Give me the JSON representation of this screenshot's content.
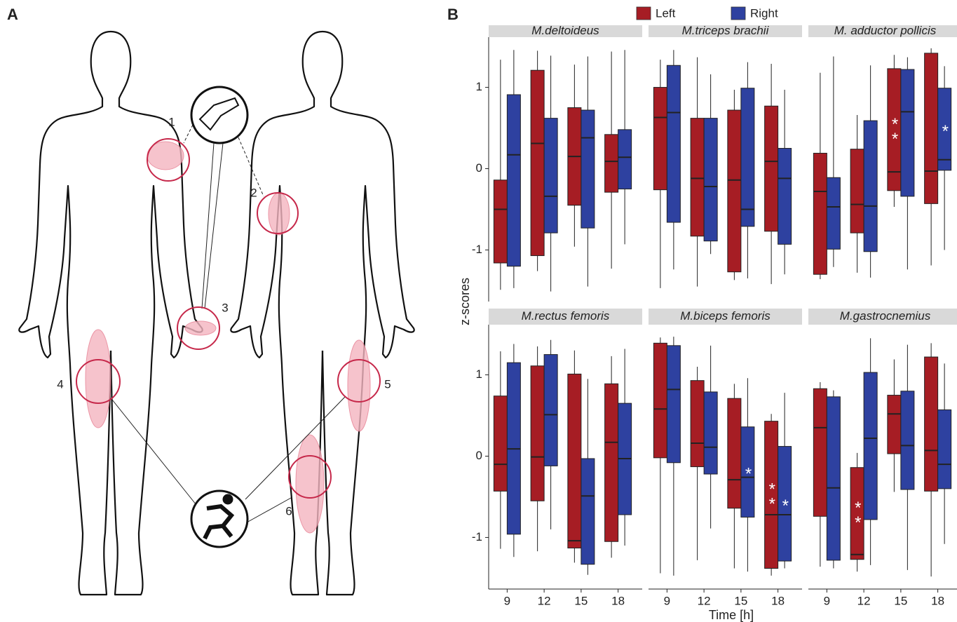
{
  "diagram": {
    "label": "A",
    "sites": [
      "1",
      "2",
      "3",
      "4",
      "5",
      "6"
    ]
  },
  "chart_data": {
    "type": "box",
    "label": "B",
    "x_label": "Time [h]",
    "y_label": "z-scores",
    "categories": [
      "9",
      "12",
      "15",
      "18"
    ],
    "series": [
      {
        "name": "Left",
        "color": "#a61d24"
      },
      {
        "name": "Right",
        "color": "#2e41a0"
      }
    ],
    "ylim": [
      -1.6,
      1.6
    ],
    "yticks": [
      -1,
      0,
      1
    ],
    "facets": [
      {
        "title": "M.deltoideus",
        "boxes": [
          [
            [
              -1.49,
              -1.16,
              -0.5,
              -0.14,
              1.34
            ],
            [
              -1.26,
              -1.07,
              0.31,
              1.21,
              1.45
            ],
            [
              -0.96,
              -0.45,
              0.15,
              0.75,
              1.28
            ],
            [
              -1.23,
              -0.29,
              0.09,
              0.42,
              1.44
            ]
          ],
          [
            [
              -1.47,
              -1.2,
              0.17,
              0.91,
              1.46
            ],
            [
              -1.51,
              -0.79,
              -0.34,
              0.62,
              1.39
            ],
            [
              -1.45,
              -0.73,
              0.38,
              0.72,
              1.38
            ],
            [
              -0.93,
              -0.25,
              0.14,
              0.48,
              1.46
            ]
          ]
        ],
        "labels": [
          [
            null,
            null,
            null,
            null
          ],
          [
            null,
            null,
            null,
            null
          ]
        ]
      },
      {
        "title": "M.triceps brachii",
        "boxes": [
          [
            [
              -1.47,
              -0.26,
              0.63,
              1.0,
              1.34
            ],
            [
              -1.45,
              -0.83,
              -0.12,
              0.62,
              1.37
            ],
            [
              -1.37,
              -1.27,
              -0.14,
              0.72,
              0.97
            ],
            [
              -1.42,
              -0.77,
              0.09,
              0.77,
              1.29
            ]
          ],
          [
            [
              -1.24,
              -0.66,
              0.69,
              1.27,
              1.46
            ],
            [
              -1.05,
              -0.89,
              -0.22,
              0.62,
              1.16
            ],
            [
              -1.35,
              -0.71,
              -0.5,
              0.99,
              1.31
            ],
            [
              -1.3,
              -0.93,
              -0.12,
              0.25,
              0.97
            ]
          ]
        ],
        "labels": [
          [
            null,
            null,
            null,
            null
          ],
          [
            null,
            null,
            null,
            null
          ]
        ]
      },
      {
        "title": "M. adductor pollicis",
        "boxes": [
          [
            [
              -1.36,
              -1.3,
              -0.28,
              0.19,
              1.18
            ],
            [
              -1.28,
              -0.79,
              -0.44,
              0.24,
              0.66
            ],
            [
              -0.47,
              -0.27,
              -0.04,
              1.23,
              1.4
            ],
            [
              -1.19,
              -0.43,
              -0.03,
              1.42,
              1.48
            ]
          ],
          [
            [
              -1.21,
              -0.99,
              -0.47,
              -0.11,
              1.38
            ],
            [
              -1.34,
              -1.02,
              -0.46,
              0.59,
              1.27
            ],
            [
              -1.24,
              -0.34,
              0.7,
              1.22,
              1.37
            ],
            [
              -1.0,
              -0.02,
              0.11,
              0.99,
              1.26
            ]
          ]
        ],
        "labels": [
          [
            null,
            null,
            "**",
            null
          ],
          [
            null,
            null,
            null,
            "*"
          ]
        ]
      },
      {
        "title": "M.rectus femoris",
        "boxes": [
          [
            [
              -1.14,
              -0.43,
              -0.1,
              0.74,
              1.29
            ],
            [
              -1.17,
              -0.55,
              -0.01,
              1.11,
              1.35
            ],
            [
              -1.31,
              -1.13,
              -1.04,
              1.01,
              1.3
            ],
            [
              -1.25,
              -1.05,
              0.17,
              0.89,
              1.23
            ]
          ],
          [
            [
              -1.24,
              -0.96,
              0.09,
              1.15,
              1.38
            ],
            [
              -0.9,
              -0.12,
              0.51,
              1.25,
              1.43
            ],
            [
              -1.46,
              -1.33,
              -0.49,
              -0.03,
              0.95
            ],
            [
              -1.1,
              -0.72,
              -0.03,
              0.65,
              1.32
            ]
          ]
        ],
        "labels": [
          [
            null,
            null,
            null,
            null
          ],
          [
            null,
            null,
            null,
            null
          ]
        ]
      },
      {
        "title": "M.biceps femoris",
        "boxes": [
          [
            [
              -1.44,
              -0.02,
              0.58,
              1.39,
              1.46
            ],
            [
              -1.28,
              -0.13,
              0.16,
              0.93,
              1.1
            ],
            [
              -1.38,
              -0.64,
              -0.29,
              0.71,
              0.89
            ],
            [
              -1.47,
              -1.38,
              -0.72,
              0.43,
              0.52
            ]
          ],
          [
            [
              -1.47,
              -0.08,
              0.82,
              1.36,
              1.47
            ],
            [
              -0.89,
              -0.22,
              0.11,
              0.79,
              1.36
            ],
            [
              -1.42,
              -0.75,
              -0.26,
              0.36,
              0.96
            ],
            [
              -1.38,
              -1.29,
              -0.72,
              0.12,
              0.78
            ]
          ]
        ],
        "labels": [
          [
            null,
            null,
            null,
            "**"
          ],
          [
            null,
            null,
            "*",
            "*"
          ]
        ]
      },
      {
        "title": "M.gastrocnemius",
        "boxes": [
          [
            [
              -1.36,
              -0.74,
              0.35,
              0.83,
              0.91
            ],
            [
              -1.42,
              -1.27,
              -1.21,
              -0.14,
              0.04
            ],
            [
              -0.44,
              0.03,
              0.52,
              0.75,
              1.19
            ],
            [
              -1.48,
              -0.43,
              0.07,
              1.22,
              1.39
            ]
          ],
          [
            [
              -1.38,
              -1.28,
              -0.39,
              0.73,
              0.81
            ],
            [
              -1.34,
              -0.78,
              0.22,
              1.03,
              1.45
            ],
            [
              -1.4,
              -0.41,
              0.13,
              0.8,
              1.37
            ],
            [
              -1.08,
              -0.4,
              -0.1,
              0.57,
              1.14
            ]
          ]
        ],
        "labels": [
          [
            null,
            "**",
            null,
            null
          ],
          [
            null,
            null,
            null,
            null
          ]
        ]
      }
    ]
  }
}
